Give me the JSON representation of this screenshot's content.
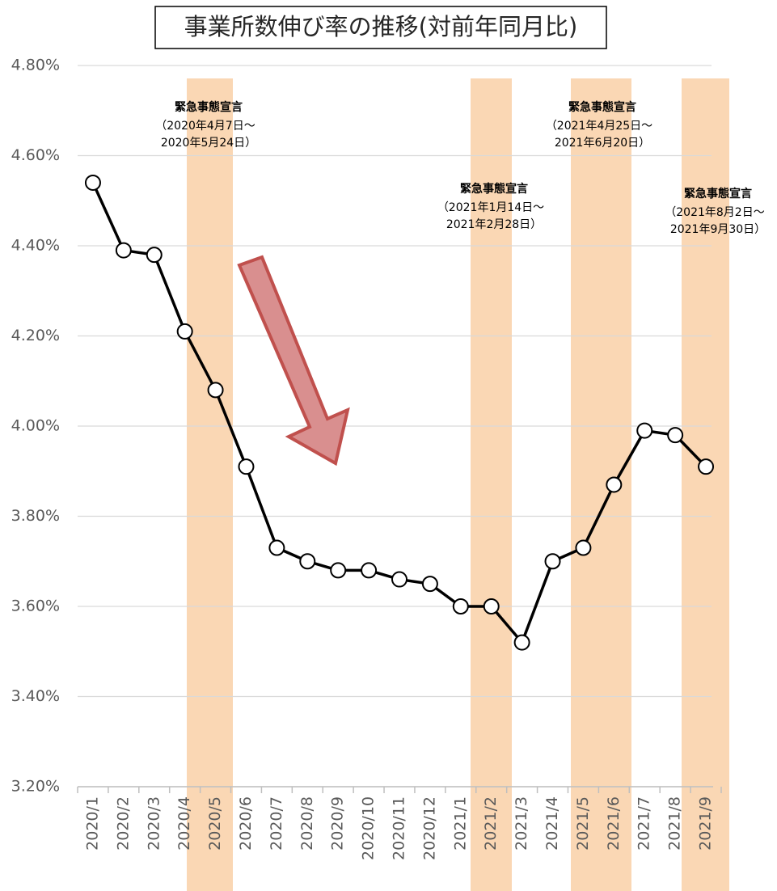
{
  "chart_data": {
    "type": "line",
    "title": "事業所数伸び率の推移(対前年同月比)",
    "categories": [
      "2020/1",
      "2020/2",
      "2020/3",
      "2020/4",
      "2020/5",
      "2020/6",
      "2020/7",
      "2020/8",
      "2020/9",
      "2020/10",
      "2020/11",
      "2020/12",
      "2021/1",
      "2021/2",
      "2021/3",
      "2021/4",
      "2021/5",
      "2021/6",
      "2021/7",
      "2021/8",
      "2021/9"
    ],
    "values": [
      4.54,
      4.39,
      4.38,
      4.21,
      4.08,
      3.91,
      3.73,
      3.7,
      3.68,
      3.68,
      3.66,
      3.65,
      3.6,
      3.6,
      3.52,
      3.7,
      3.73,
      3.87,
      3.99,
      3.98,
      3.91
    ],
    "color": "#000000",
    "ylim": [
      3.2,
      4.8
    ],
    "yticks": [
      {
        "value": 3.2,
        "label": "3.20%"
      },
      {
        "value": 3.4,
        "label": "3.40%"
      },
      {
        "value": 3.6,
        "label": "3.60%"
      },
      {
        "value": 3.8,
        "label": "3.80%"
      },
      {
        "value": 4.0,
        "label": "4.00%"
      },
      {
        "value": 4.2,
        "label": "4.20%"
      },
      {
        "value": 4.4,
        "label": "4.40%"
      },
      {
        "value": 4.6,
        "label": "4.60%"
      },
      {
        "value": 4.8,
        "label": "4.80%"
      }
    ],
    "grid": true,
    "annotations": [
      {
        "label": "緊急事態宣言",
        "start": "（2020年4月7日～",
        "end": "2020年5月24日）"
      },
      {
        "label": "緊急事態宣言",
        "start": "（2021年1月14日～",
        "end": "2021年2月28日）"
      },
      {
        "label": "緊急事態宣言",
        "start": "（2021年4月25日～",
        "end": "2021年6月20日）"
      },
      {
        "label": "緊急事態宣言",
        "start": "（2021年8月2日～",
        "end": "2021年9月30日）"
      }
    ]
  }
}
